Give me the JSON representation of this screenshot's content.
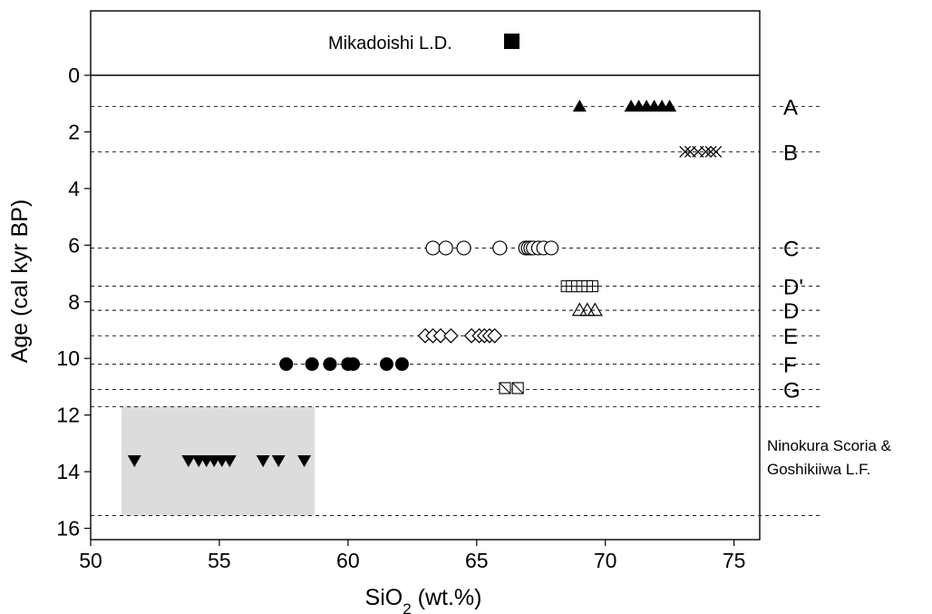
{
  "chart_data": {
    "type": "scatter",
    "xlabel": {
      "main": "SiO",
      "sub": "2",
      "rest": " (wt.%)"
    },
    "ylabel": "Age (cal kyr BP)",
    "xlim": [
      50,
      76
    ],
    "ylim": [
      0,
      16.4
    ],
    "x_ticks": [
      50,
      55,
      60,
      65,
      70,
      75
    ],
    "y_ticks": [
      0,
      2,
      4,
      6,
      8,
      10,
      12,
      14,
      16
    ],
    "grid": false,
    "top_panel": {
      "label": "Mikadoishi L.D.",
      "marker": "square-filled"
    },
    "reference_lines": [
      {
        "age": 1.1,
        "label": "A"
      },
      {
        "age": 2.7,
        "label": "B"
      },
      {
        "age": 6.1,
        "label": "C"
      },
      {
        "age": 7.45,
        "label": "D'"
      },
      {
        "age": 8.3,
        "label": "D"
      },
      {
        "age": 9.2,
        "label": "E"
      },
      {
        "age": 10.2,
        "label": "F"
      },
      {
        "age": 11.1,
        "label": "G"
      },
      {
        "age": 11.7,
        "label": ""
      },
      {
        "age": 15.55,
        "label": ""
      }
    ],
    "shaded_region": {
      "x": [
        51.2,
        58.7
      ],
      "y": [
        11.7,
        15.55
      ],
      "color": "#dcdcdc",
      "label": "Ninokura Scoria & Goshikiiwa L.F."
    },
    "series": [
      {
        "label": "A",
        "marker": "triangle-up-filled",
        "y": 1.1,
        "x": [
          69.0,
          71.0,
          71.3,
          71.6,
          71.9,
          72.2,
          72.5
        ]
      },
      {
        "label": "B",
        "marker": "x-cross",
        "y": 2.7,
        "x": [
          73.1,
          73.3,
          73.6,
          73.9,
          74.1,
          74.3
        ]
      },
      {
        "label": "C",
        "marker": "circle-open",
        "y": 6.1,
        "x": [
          63.3,
          63.8,
          64.5,
          65.9,
          66.9,
          67.0,
          67.1,
          67.2,
          67.4,
          67.6,
          67.9
        ]
      },
      {
        "label": "D'",
        "marker": "square-grid",
        "y": 7.45,
        "x": [
          68.5,
          68.7,
          68.9,
          69.1,
          69.3,
          69.5
        ]
      },
      {
        "label": "D",
        "marker": "triangle-up-open",
        "y": 8.3,
        "x": [
          69.0,
          69.3,
          69.6
        ]
      },
      {
        "label": "E",
        "marker": "diamond-open",
        "y": 9.2,
        "x": [
          63.0,
          63.3,
          63.6,
          64.0,
          64.8,
          65.1,
          65.3,
          65.5,
          65.7
        ]
      },
      {
        "label": "F",
        "marker": "circle-filled",
        "y": 10.2,
        "x": [
          57.6,
          58.6,
          59.3,
          60.0,
          60.2,
          61.5,
          62.1
        ]
      },
      {
        "label": "G",
        "marker": "square-diagonal",
        "y": 11.05,
        "x": [
          66.1,
          66.6
        ]
      },
      {
        "label": "Ninokura Scoria & Goshikiiwa L.F.",
        "marker": "triangle-down-filled",
        "y": 13.6,
        "x": [
          51.7,
          53.8,
          54.2,
          54.5,
          54.8,
          55.1,
          55.4,
          56.7,
          57.3,
          58.3
        ]
      }
    ]
  }
}
